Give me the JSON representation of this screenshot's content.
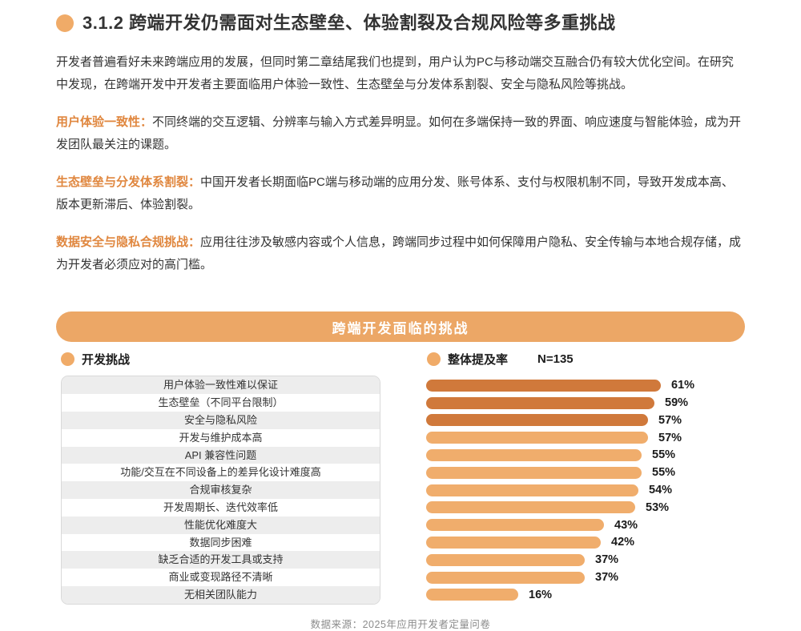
{
  "header": {
    "section_number": "3.1.2",
    "title": "3.1.2 跨端开发仍需面对生态壁垒、体验割裂及合规风险等多重挑战"
  },
  "intro": "开发者普遍看好未来跨端应用的发展，但同时第二章结尾我们也提到，用户认为PC与移动端交互融合仍有较大优化空间。在研究中发现，在跨端开发中开发者主要面临用户体验一致性、生态壁垒与分发体系割裂、安全与隐私风险等挑战。",
  "sections": [
    {
      "label": "用户体验一致性：",
      "text": "不同终端的交互逻辑、分辨率与输入方式差异明显。如何在多端保持一致的界面、响应速度与智能体验，成为开发团队最关注的课题。"
    },
    {
      "label": "生态壁垒与分发体系割裂：",
      "text": "中国开发者长期面临PC端与移动端的应用分发、账号体系、支付与权限机制不同，导致开发成本高、版本更新滞后、体验割裂。"
    },
    {
      "label": "数据安全与隐私合规挑战：",
      "text": "应用往往涉及敏感内容或个人信息，跨端同步过程中如何保障用户隐私、安全传输与本地合规存储，成为开发者必须应对的高门槛。"
    }
  ],
  "chart": {
    "banner_title": "跨端开发面临的挑战",
    "legend_left": "开发挑战",
    "legend_right": "整体提及率",
    "sample_size": "N=135",
    "source": "数据来源：2025年应用开发者定量问卷"
  },
  "chart_data": {
    "type": "bar",
    "orientation": "horizontal",
    "title": "跨端开发面临的挑战",
    "legend": [
      "开发挑战",
      "整体提及率"
    ],
    "sample": "N=135",
    "unit": "%",
    "categories": [
      "用户体验一致性难以保证",
      "生态壁垒（不同平台限制）",
      "安全与隐私风险",
      "开发与维护成本高",
      "API 兼容性问题",
      "功能/交互在不同设备上的差异化设计难度高",
      "合规审核复杂",
      "开发周期长、迭代效率低",
      "性能优化难度大",
      "数据同步困难",
      "缺乏合适的开发工具或支持",
      "商业或变现路径不清晰",
      "无相关团队能力"
    ],
    "values": [
      61,
      59,
      57,
      57,
      55,
      55,
      54,
      53,
      43,
      42,
      37,
      37,
      16
    ],
    "xlim": [
      0,
      65
    ],
    "grid": false,
    "highlight_count": 3,
    "colors": {
      "highlight": "#D0793B",
      "normal": "#F0AD6C"
    },
    "source": "数据来源：2025年应用开发者定量问卷"
  },
  "colors": {
    "accent_orange": "#ECA766",
    "dot_orange": "#F0AB68",
    "label_orange": "#E0873F",
    "bar_dark": "#D0793B",
    "bar_light": "#F0AD6C",
    "row_shade": "#EDEDED"
  }
}
